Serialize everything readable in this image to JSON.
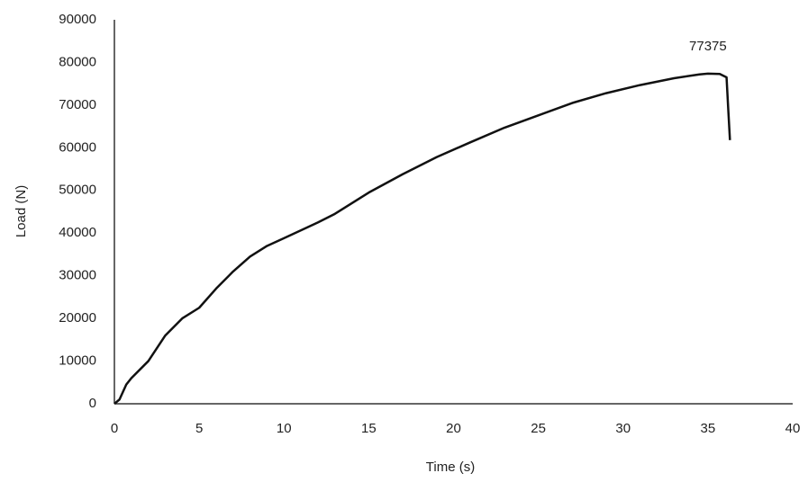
{
  "chart_data": {
    "type": "line",
    "x_label": "Time (s)",
    "y_label": "Load (N)",
    "xlim": [
      0,
      40
    ],
    "xticks": [
      0,
      5,
      10,
      15,
      20,
      25,
      30,
      35,
      40
    ],
    "ylim": [
      0,
      90000
    ],
    "yticks": [
      0,
      10000,
      20000,
      30000,
      40000,
      50000,
      60000,
      70000,
      80000,
      90000
    ],
    "grid": false,
    "series": [
      {
        "color": "#111111",
        "x": [
          0,
          0.3,
          0.7,
          1,
          2,
          3,
          4,
          5,
          6,
          7,
          8,
          9,
          10,
          12,
          13,
          15,
          17,
          19,
          21,
          23,
          25,
          27,
          29,
          31,
          33,
          34.5,
          35,
          35.7,
          36.1,
          36.2,
          36.3
        ],
        "values": [
          0,
          1000,
          4500,
          6000,
          10000,
          16000,
          20000,
          22500,
          27000,
          31000,
          34500,
          37000,
          38800,
          42500,
          44500,
          49500,
          53800,
          57800,
          61300,
          64700,
          67600,
          70500,
          72800,
          74700,
          76300,
          77200,
          77375,
          77300,
          76500,
          69000,
          61800
        ]
      }
    ],
    "annotations": [
      {
        "x": 35,
        "y": 77375,
        "label": "77375"
      }
    ]
  }
}
